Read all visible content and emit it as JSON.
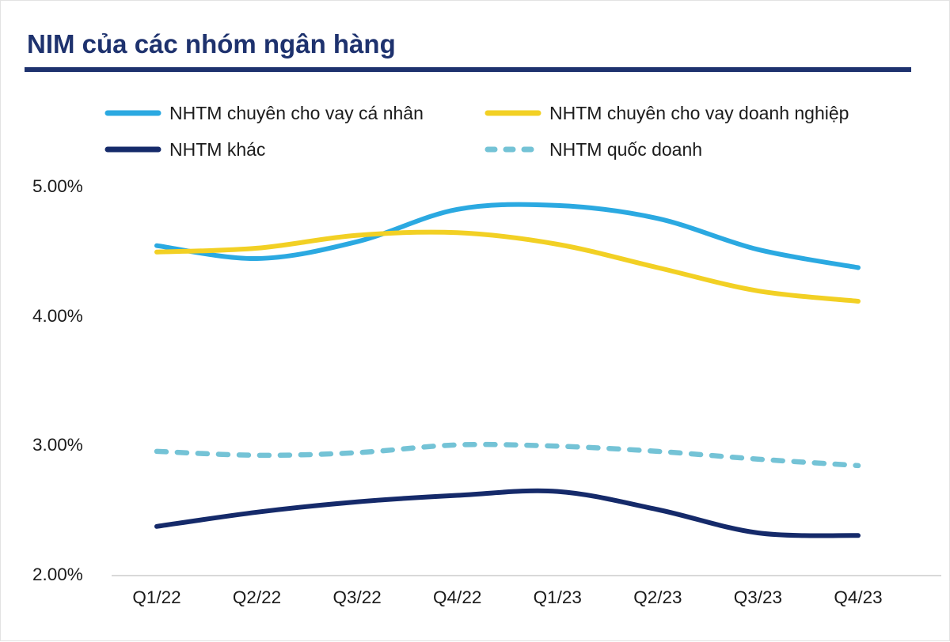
{
  "header": {
    "title": "NIM của các nhóm ngân hàng"
  },
  "colors": {
    "title": "#1E326E",
    "underline": "#1E326E",
    "axis_line": "#D9D9D9",
    "tick_text": "#1A1A1A"
  },
  "chart_data": {
    "type": "line",
    "title": "NIM của các nhóm ngân hàng",
    "categories": [
      "Q1/22",
      "Q2/22",
      "Q3/22",
      "Q4/22",
      "Q1/23",
      "Q2/23",
      "Q3/23",
      "Q4/23"
    ],
    "series": [
      {
        "name": "NHTM chuyên cho vay cá nhân",
        "style": "solid",
        "color": "#2BA9E1",
        "values": [
          4.55,
          4.45,
          4.58,
          4.83,
          4.86,
          4.76,
          4.52,
          4.38
        ]
      },
      {
        "name": "NHTM chuyên cho vay doanh nghiệp",
        "style": "solid",
        "color": "#F2D024",
        "values": [
          4.5,
          4.53,
          4.63,
          4.65,
          4.56,
          4.38,
          4.2,
          4.12
        ]
      },
      {
        "name": "NHTM khác",
        "style": "solid",
        "color": "#152A6A",
        "values": [
          2.38,
          2.49,
          2.57,
          2.62,
          2.65,
          2.51,
          2.33,
          2.31
        ]
      },
      {
        "name": "NHTM quốc doanh",
        "style": "dashed",
        "color": "#74C3D6",
        "values": [
          2.96,
          2.93,
          2.95,
          3.01,
          3.0,
          2.96,
          2.9,
          2.85
        ]
      }
    ],
    "y_ticks": [
      {
        "label": "5.00%",
        "value": 5
      },
      {
        "label": "4.00%",
        "value": 4
      },
      {
        "label": "3.00%",
        "value": 3
      },
      {
        "label": "2.00%",
        "value": 2
      }
    ],
    "ylim": [
      2,
      5
    ],
    "unit": "%",
    "legend_position": "top",
    "grid": false
  }
}
